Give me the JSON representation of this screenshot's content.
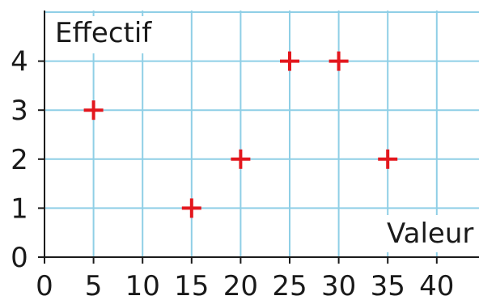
{
  "chart_data": {
    "type": "scatter",
    "title": "",
    "xlabel": "Valeur",
    "ylabel": "Effectif",
    "x_ticks": [
      0,
      5,
      10,
      15,
      20,
      25,
      30,
      35,
      40
    ],
    "y_ticks": [
      0,
      1,
      2,
      3,
      4
    ],
    "xlim": [
      0,
      44
    ],
    "ylim": [
      0,
      5
    ],
    "grid": true,
    "marker": "plus",
    "colors": {
      "marker": "#e3171d",
      "grid": "#8fcfe6",
      "axis": "#1a1a1a"
    },
    "points": [
      {
        "x": 5,
        "y": 3
      },
      {
        "x": 15,
        "y": 1
      },
      {
        "x": 20,
        "y": 2
      },
      {
        "x": 25,
        "y": 4
      },
      {
        "x": 30,
        "y": 4
      },
      {
        "x": 35,
        "y": 2
      }
    ]
  }
}
